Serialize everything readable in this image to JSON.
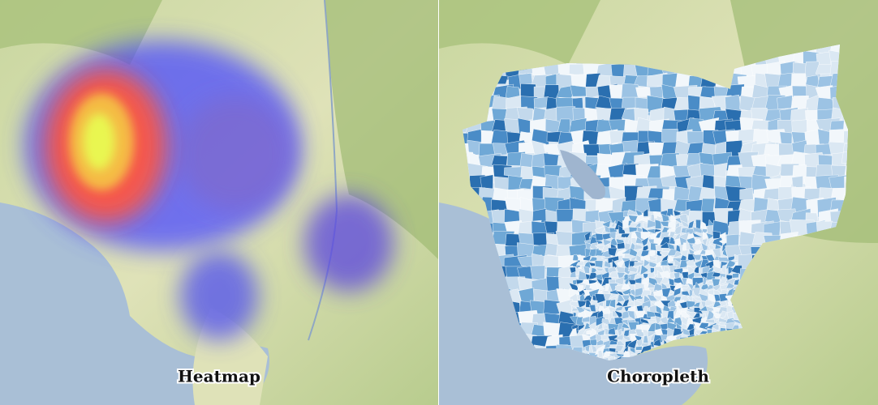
{
  "panels": [
    {
      "label": "Heatmap"
    },
    {
      "label": "Choropleth"
    }
  ]
}
